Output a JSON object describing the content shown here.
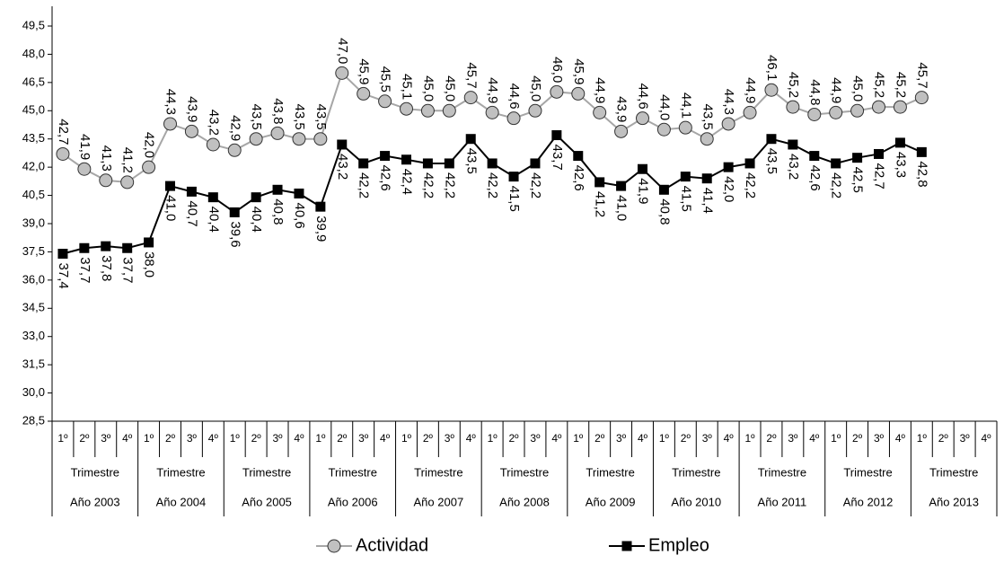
{
  "chart_data": {
    "type": "line",
    "categories": [
      "1º",
      "2º",
      "3º",
      "4º",
      "1º",
      "2º",
      "3º",
      "4º",
      "1º",
      "2º",
      "3º",
      "4º",
      "1º",
      "2º",
      "3º",
      "4º",
      "1º",
      "2º",
      "3º",
      "4º",
      "1º",
      "2º",
      "3º",
      "4º",
      "1º",
      "2º",
      "3º",
      "4º",
      "1º",
      "2º",
      "3º",
      "4º",
      "1º",
      "2º",
      "3º",
      "4º",
      "1º",
      "2º",
      "3º",
      "4º",
      "1º",
      "2º",
      "3º",
      "4º"
    ],
    "groups": [
      {
        "label": "Año 2003",
        "sublabel": "Trimestre"
      },
      {
        "label": "Año 2004",
        "sublabel": "Trimestre"
      },
      {
        "label": "Año 2005",
        "sublabel": "Trimestre"
      },
      {
        "label": "Año 2006",
        "sublabel": "Trimestre"
      },
      {
        "label": "Año 2007",
        "sublabel": "Trimestre"
      },
      {
        "label": "Año 2008",
        "sublabel": "Trimestre"
      },
      {
        "label": "Año 2009",
        "sublabel": "Trimestre"
      },
      {
        "label": "Año 2010",
        "sublabel": "Trimestre"
      },
      {
        "label": "Año 2011",
        "sublabel": "Trimestre"
      },
      {
        "label": "Año 2012",
        "sublabel": "Trimestre"
      },
      {
        "label": "Año 2013",
        "sublabel": "Trimestre"
      }
    ],
    "series": [
      {
        "name": "Actividad",
        "color": "#a6a6a6",
        "marker": "circle",
        "marker_fill": "#c0c0c0",
        "label_side": "above",
        "values": [
          42.7,
          41.9,
          41.3,
          41.2,
          42.0,
          44.3,
          43.9,
          43.2,
          42.9,
          43.5,
          43.8,
          43.5,
          43.5,
          47.0,
          45.9,
          45.5,
          45.1,
          45.0,
          45.0,
          45.7,
          44.9,
          44.6,
          45.0,
          46.0,
          45.9,
          44.9,
          43.9,
          44.6,
          44.0,
          44.1,
          43.5,
          44.3,
          44.9,
          46.1,
          45.2,
          44.8,
          44.9,
          45.0,
          45.2,
          45.2,
          45.7,
          null,
          null,
          null
        ],
        "value_labels": [
          "42,7",
          "41,9",
          "41,3",
          "41,2",
          "42,0",
          "44,3",
          "43,9",
          "43,2",
          "42,9",
          "43,5",
          "43,8",
          "43,5",
          "43,5",
          "47,0",
          "45,9",
          "45,5",
          "45,1",
          "45,0",
          "45,0",
          "45,7",
          "44,9",
          "44,6",
          "45,0",
          "46,0",
          "45,9",
          "44,9",
          "43,9",
          "44,6",
          "44,0",
          "44,1",
          "43,5",
          "44,3",
          "44,9",
          "46,1",
          "45,2",
          "44,8",
          "44,9",
          "45,0",
          "45,2",
          "45,2",
          "45,7",
          null,
          null,
          null
        ]
      },
      {
        "name": "Empleo",
        "color": "#000000",
        "marker": "square",
        "marker_fill": "#000000",
        "label_side": "below",
        "values": [
          37.4,
          37.7,
          37.8,
          37.7,
          38.0,
          41.0,
          40.7,
          40.4,
          39.6,
          40.4,
          40.8,
          40.6,
          39.9,
          43.2,
          42.2,
          42.6,
          42.4,
          42.2,
          42.2,
          43.5,
          42.2,
          41.5,
          42.2,
          43.7,
          42.6,
          41.2,
          41.0,
          41.9,
          40.8,
          41.5,
          41.4,
          42.0,
          42.2,
          43.5,
          43.2,
          42.6,
          42.2,
          42.5,
          42.7,
          43.3,
          42.8,
          null,
          null,
          null
        ],
        "value_labels": [
          "37,4",
          "37,7",
          "37,8",
          "37,7",
          "38,0",
          "41,0",
          "40,7",
          "40,4",
          "39,6",
          "40,4",
          "40,8",
          "40,6",
          "39,9",
          "43,2",
          "42,2",
          "42,6",
          "42,4",
          "42,2",
          "42,2",
          "43,5",
          "42,2",
          "41,5",
          "42,2",
          "43,7",
          "42,6",
          "41,2",
          "41,0",
          "41,9",
          "40,8",
          "41,5",
          "41,4",
          "42,0",
          "42,2",
          "43,5",
          "43,2",
          "42,6",
          "42,2",
          "42,5",
          "42,7",
          "43,3",
          "42,8",
          null,
          null,
          null
        ]
      }
    ],
    "ylim": [
      28.5,
      49.5
    ],
    "yticks": [
      {
        "value": 28.5,
        "label": "28,5"
      },
      {
        "value": 30.0,
        "label": "30,0"
      },
      {
        "value": 31.5,
        "label": "31,5"
      },
      {
        "value": 33.0,
        "label": "33,0"
      },
      {
        "value": 34.5,
        "label": "34,5"
      },
      {
        "value": 36.0,
        "label": "36,0"
      },
      {
        "value": 37.5,
        "label": "37,5"
      },
      {
        "value": 39.0,
        "label": "39,0"
      },
      {
        "value": 40.5,
        "label": "40,5"
      },
      {
        "value": 42.0,
        "label": "42,0"
      },
      {
        "value": 43.5,
        "label": "43,5"
      },
      {
        "value": 45.0,
        "label": "45,0"
      },
      {
        "value": 46.5,
        "label": "46,5"
      },
      {
        "value": 48.0,
        "label": "48,0"
      },
      {
        "value": 49.5,
        "label": "49,5"
      }
    ],
    "grid": false,
    "legend": "bottom"
  }
}
